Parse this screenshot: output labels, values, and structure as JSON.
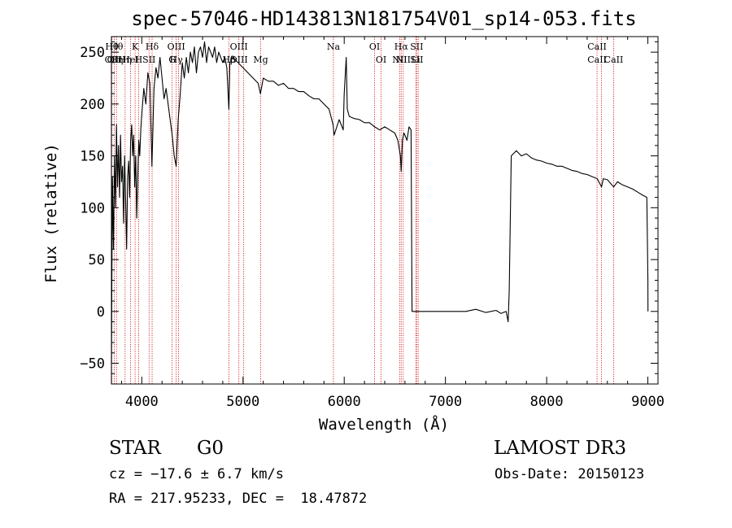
{
  "chart_data": {
    "type": "line",
    "title": "spec-57046-HD143813N181754V01_sp14-053.fits",
    "xlabel": "Wavelength (Å)",
    "ylabel": "Flux (relative)",
    "xlim": [
      3700,
      9100
    ],
    "ylim": [
      -70,
      265
    ],
    "xticks": [
      4000,
      5000,
      6000,
      7000,
      8000,
      9000
    ],
    "yticks": [
      -50,
      0,
      50,
      100,
      150,
      200,
      250
    ],
    "xtick_labels": [
      "4000",
      "5000",
      "6000",
      "7000",
      "8000",
      "9000"
    ],
    "ytick_labels": [
      "−50",
      "0",
      "50",
      "100",
      "150",
      "200",
      "250"
    ],
    "grid": false,
    "series": [
      {
        "name": "flux",
        "color": "#000000",
        "points": [
          [
            3700,
            -50
          ],
          [
            3710,
            130
          ],
          [
            3720,
            60
          ],
          [
            3730,
            150
          ],
          [
            3740,
            100
          ],
          [
            3750,
            180
          ],
          [
            3760,
            120
          ],
          [
            3770,
            160
          ],
          [
            3780,
            110
          ],
          [
            3790,
            170
          ],
          [
            3800,
            125
          ],
          [
            3810,
            140
          ],
          [
            3820,
            85
          ],
          [
            3830,
            150
          ],
          [
            3840,
            110
          ],
          [
            3850,
            60
          ],
          [
            3860,
            130
          ],
          [
            3870,
            145
          ],
          [
            3880,
            110
          ],
          [
            3890,
            165
          ],
          [
            3900,
            180
          ],
          [
            3910,
            150
          ],
          [
            3920,
            170
          ],
          [
            3930,
            120
          ],
          [
            3940,
            150
          ],
          [
            3950,
            90
          ],
          [
            3960,
            130
          ],
          [
            3970,
            165
          ],
          [
            3980,
            150
          ],
          [
            3990,
            175
          ],
          [
            4000,
            190
          ],
          [
            4020,
            215
          ],
          [
            4040,
            200
          ],
          [
            4060,
            230
          ],
          [
            4080,
            220
          ],
          [
            4100,
            140
          ],
          [
            4120,
            215
          ],
          [
            4140,
            235
          ],
          [
            4160,
            225
          ],
          [
            4180,
            245
          ],
          [
            4200,
            225
          ],
          [
            4220,
            205
          ],
          [
            4240,
            215
          ],
          [
            4260,
            200
          ],
          [
            4280,
            185
          ],
          [
            4300,
            170
          ],
          [
            4320,
            150
          ],
          [
            4340,
            140
          ],
          [
            4360,
            185
          ],
          [
            4380,
            210
          ],
          [
            4400,
            240
          ],
          [
            4420,
            225
          ],
          [
            4440,
            245
          ],
          [
            4460,
            230
          ],
          [
            4480,
            250
          ],
          [
            4500,
            240
          ],
          [
            4520,
            255
          ],
          [
            4540,
            230
          ],
          [
            4560,
            250
          ],
          [
            4580,
            255
          ],
          [
            4600,
            245
          ],
          [
            4620,
            260
          ],
          [
            4640,
            240
          ],
          [
            4660,
            255
          ],
          [
            4680,
            250
          ],
          [
            4700,
            245
          ],
          [
            4720,
            255
          ],
          [
            4740,
            240
          ],
          [
            4760,
            250
          ],
          [
            4780,
            245
          ],
          [
            4800,
            240
          ],
          [
            4820,
            245
          ],
          [
            4840,
            235
          ],
          [
            4860,
            195
          ],
          [
            4870,
            240
          ],
          [
            4900,
            245
          ],
          [
            4950,
            240
          ],
          [
            5000,
            235
          ],
          [
            5050,
            230
          ],
          [
            5100,
            225
          ],
          [
            5150,
            220
          ],
          [
            5172,
            210
          ],
          [
            5200,
            225
          ],
          [
            5250,
            222
          ],
          [
            5300,
            222
          ],
          [
            5350,
            218
          ],
          [
            5400,
            220
          ],
          [
            5450,
            215
          ],
          [
            5500,
            215
          ],
          [
            5550,
            212
          ],
          [
            5600,
            212
          ],
          [
            5650,
            208
          ],
          [
            5700,
            205
          ],
          [
            5750,
            205
          ],
          [
            5800,
            200
          ],
          [
            5850,
            195
          ],
          [
            5890,
            180
          ],
          [
            5900,
            170
          ],
          [
            5950,
            185
          ],
          [
            5990,
            175
          ],
          [
            6000,
            210
          ],
          [
            6020,
            245
          ],
          [
            6030,
            195
          ],
          [
            6050,
            188
          ],
          [
            6100,
            186
          ],
          [
            6150,
            185
          ],
          [
            6200,
            182
          ],
          [
            6250,
            182
          ],
          [
            6300,
            178
          ],
          [
            6350,
            175
          ],
          [
            6400,
            178
          ],
          [
            6450,
            175
          ],
          [
            6500,
            172
          ],
          [
            6530,
            165
          ],
          [
            6555,
            150
          ],
          [
            6563,
            135
          ],
          [
            6575,
            165
          ],
          [
            6590,
            172
          ],
          [
            6600,
            170
          ],
          [
            6620,
            165
          ],
          [
            6640,
            178
          ],
          [
            6660,
            175
          ],
          [
            6670,
            0
          ],
          [
            7000,
            0
          ],
          [
            7200,
            0
          ],
          [
            7300,
            2
          ],
          [
            7400,
            -1
          ],
          [
            7500,
            1
          ],
          [
            7550,
            -2
          ],
          [
            7600,
            0
          ],
          [
            7620,
            -10
          ],
          [
            7630,
            20
          ],
          [
            7650,
            150
          ],
          [
            7700,
            155
          ],
          [
            7750,
            150
          ],
          [
            7800,
            152
          ],
          [
            7850,
            148
          ],
          [
            7900,
            146
          ],
          [
            7950,
            145
          ],
          [
            8000,
            143
          ],
          [
            8050,
            142
          ],
          [
            8100,
            140
          ],
          [
            8150,
            140
          ],
          [
            8200,
            138
          ],
          [
            8250,
            136
          ],
          [
            8300,
            135
          ],
          [
            8350,
            133
          ],
          [
            8400,
            132
          ],
          [
            8450,
            130
          ],
          [
            8500,
            128
          ],
          [
            8542,
            120
          ],
          [
            8560,
            128
          ],
          [
            8600,
            127
          ],
          [
            8662,
            120
          ],
          [
            8700,
            125
          ],
          [
            8750,
            122
          ],
          [
            8800,
            120
          ],
          [
            8850,
            118
          ],
          [
            8900,
            115
          ],
          [
            8950,
            112
          ],
          [
            8990,
            110
          ],
          [
            9000,
            30
          ],
          [
            9001,
            0
          ]
        ]
      }
    ],
    "lines": [
      {
        "x": 3704,
        "top": "Hθ",
        "bottom": "OII"
      },
      {
        "x": 3728,
        "top": "",
        "bottom": "OII"
      },
      {
        "x": 3750,
        "top": "Hθ",
        "bottom": "Hη"
      },
      {
        "x": 3835,
        "top": "",
        "bottom": "Hη"
      },
      {
        "x": 3889,
        "top": "",
        "bottom": "HeI"
      },
      {
        "x": 3934,
        "top": "K",
        "bottom": ""
      },
      {
        "x": 3969,
        "top": "",
        "bottom": "H"
      },
      {
        "x": 4072,
        "top": "",
        "bottom": "SII"
      },
      {
        "x": 4102,
        "top": "Hδ",
        "bottom": ""
      },
      {
        "x": 4300,
        "top": "",
        "bottom": "G"
      },
      {
        "x": 4340,
        "top": "OIII",
        "bottom": "Hγ"
      },
      {
        "x": 4363,
        "top": "",
        "bottom": ""
      },
      {
        "x": 4861,
        "top": "",
        "bottom": "Hβ"
      },
      {
        "x": 4959,
        "top": "OIII",
        "bottom": "OIII"
      },
      {
        "x": 5007,
        "top": "",
        "bottom": ""
      },
      {
        "x": 5175,
        "top": "",
        "bottom": "Mg"
      },
      {
        "x": 5893,
        "top": "Na",
        "bottom": ""
      },
      {
        "x": 6300,
        "top": "OI",
        "bottom": ""
      },
      {
        "x": 6364,
        "top": "",
        "bottom": "OI"
      },
      {
        "x": 6548,
        "top": "",
        "bottom": "NII"
      },
      {
        "x": 6563,
        "top": "Hα",
        "bottom": ""
      },
      {
        "x": 6583,
        "top": "",
        "bottom": "NII"
      },
      {
        "x": 6707,
        "top": "",
        "bottom": "Li"
      },
      {
        "x": 6716,
        "top": "SII",
        "bottom": "SII"
      },
      {
        "x": 6731,
        "top": "",
        "bottom": ""
      },
      {
        "x": 8498,
        "top": "CaII",
        "bottom": "CaII"
      },
      {
        "x": 8542,
        "top": "",
        "bottom": ""
      },
      {
        "x": 8662,
        "top": "",
        "bottom": "CaII"
      }
    ]
  },
  "footer": {
    "object_class": "STAR",
    "subclass": "G0",
    "survey": "LAMOST DR3",
    "cz": "cz = −17.6 ± 6.7 km/s",
    "obs_date": "Obs-Date: 20150123",
    "coords": "RA = 217.95233, DEC =  18.47872"
  }
}
